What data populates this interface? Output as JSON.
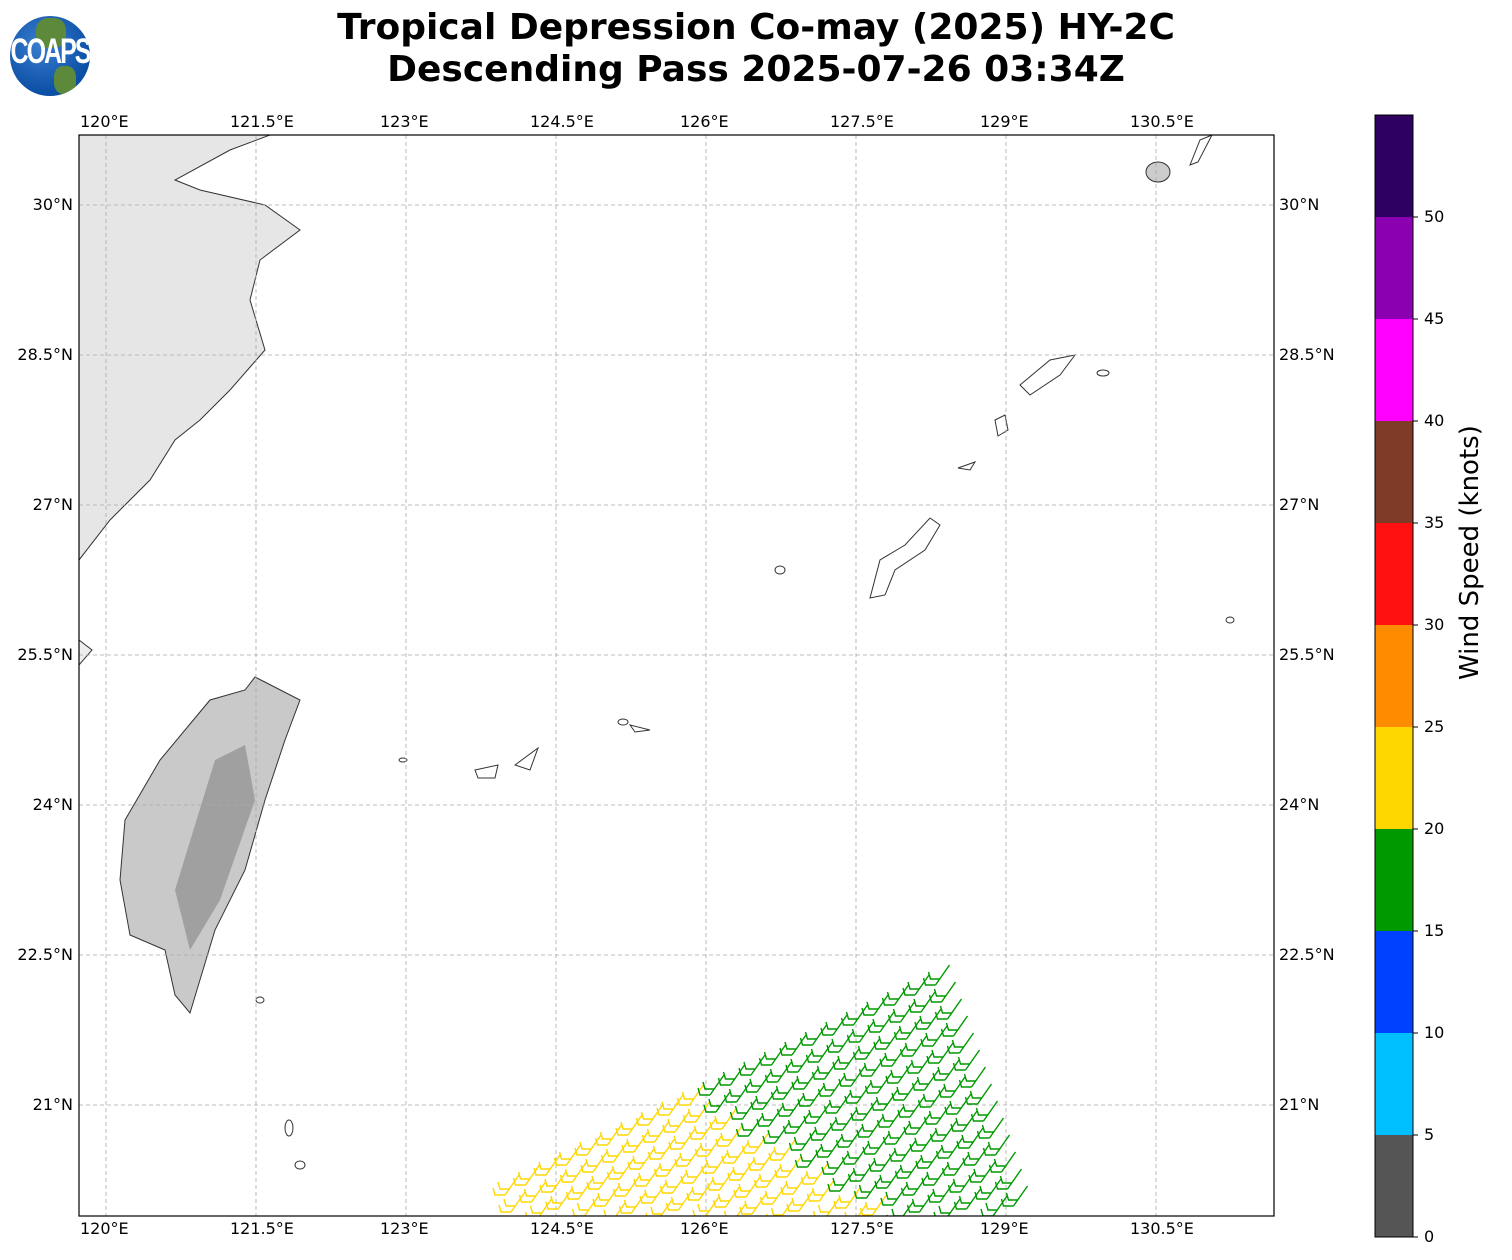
{
  "title_line1": "Tropical Depression Co-may (2025) HY-2C",
  "title_line2": "Descending Pass 2025-07-26 03:34Z",
  "logo_text": "COAPS",
  "lon_ticks": [
    "120°E",
    "121.5°E",
    "123°E",
    "124.5°E",
    "126°E",
    "127.5°E",
    "129°E",
    "130.5°E"
  ],
  "lat_ticks": [
    "30°N",
    "28.5°N",
    "27°N",
    "25.5°N",
    "24°N",
    "22.5°N",
    "21°N"
  ],
  "colorbar": {
    "label": "Wind Speed (knots)",
    "ticks": [
      "0",
      "5",
      "10",
      "15",
      "20",
      "25",
      "30",
      "35",
      "40",
      "45",
      "50"
    ],
    "colors": [
      "#555555",
      "#00bfff",
      "#0040ff",
      "#009900",
      "#ffd700",
      "#ff8c00",
      "#ff1010",
      "#803a28",
      "#ff00ff",
      "#8b00b0",
      "#2e0060"
    ]
  },
  "barb_colors": {
    "moderate": "#ffd700",
    "fresh": "#009900"
  }
}
